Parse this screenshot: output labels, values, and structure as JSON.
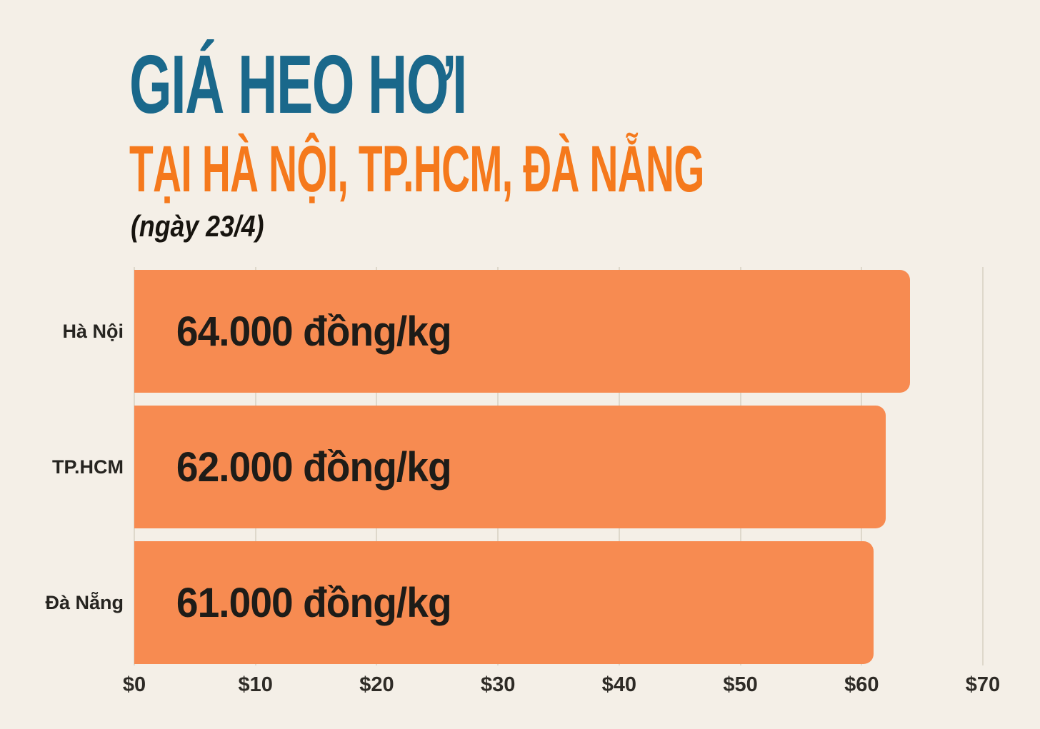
{
  "header": {
    "title": "GIÁ HEO HƠI",
    "subtitle": "TẠI HÀ NỘI, TP.HCM, ĐÀ NẴNG",
    "date_note": "(ngày 23/4)"
  },
  "colors": {
    "background": "#F4EFE7",
    "title": "#1A688B",
    "subtitle": "#F5791C",
    "bar": "#F78B51",
    "bar_value_text": "#1E1C18",
    "category_label": "#262420",
    "tick_label": "#2E2B26",
    "gridline": "#DED8CB",
    "date_note": "#17140F"
  },
  "chart_data": {
    "type": "bar",
    "orientation": "horizontal",
    "title": "GIÁ HEO HƠI TẠI HÀ NỘI, TP.HCM, ĐÀ NẴNG (ngày 23/4)",
    "categories": [
      "Hà Nội",
      "TP.HCM",
      "Đà Nẵng"
    ],
    "values": [
      64,
      62,
      61
    ],
    "value_labels": [
      "64.000 đồng/kg",
      "62.000 đồng/kg",
      "61.000 đồng/kg"
    ],
    "x_ticks": [
      "$0",
      "$10",
      "$20",
      "$30",
      "$40",
      "$50",
      "$60",
      "$70"
    ],
    "x_tick_values": [
      0,
      10,
      20,
      30,
      40,
      50,
      60,
      70
    ],
    "xlim": [
      0,
      70
    ],
    "xlabel": "",
    "ylabel": "",
    "grid": true,
    "legend": false
  }
}
